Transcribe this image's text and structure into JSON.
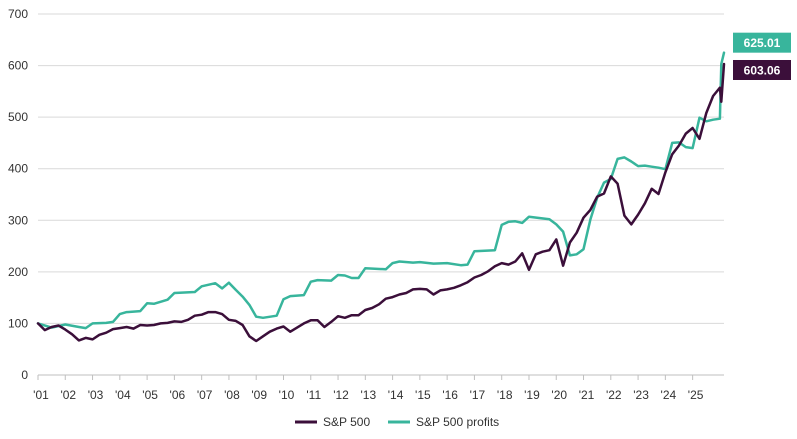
{
  "chart_data": {
    "type": "line",
    "ylim": [
      0,
      700
    ],
    "y_ticks": [
      0,
      100,
      200,
      300,
      400,
      500,
      600,
      700
    ],
    "x_tick_labels": [
      "'01",
      "'02",
      "'03",
      "'04",
      "'05",
      "'06",
      "'07",
      "'08",
      "'09",
      "'10",
      "'11",
      "'12",
      "'13",
      "'14",
      "'15",
      "'16",
      "'17",
      "'18",
      "'19",
      "'20",
      "'21",
      "'22",
      "'23",
      "'24",
      "'25"
    ],
    "xlim": [
      2001.0,
      2026.15
    ],
    "grid": "horizontal",
    "legend_position": "bottom",
    "series": [
      {
        "name": "S&P 500",
        "color": "#3b0f3a",
        "end_label": "603.06",
        "points": [
          [
            2001.0,
            100
          ],
          [
            2001.25,
            87
          ],
          [
            2001.5,
            93
          ],
          [
            2001.75,
            96
          ],
          [
            2002.0,
            88
          ],
          [
            2002.25,
            79
          ],
          [
            2002.5,
            67
          ],
          [
            2002.75,
            72
          ],
          [
            2003.0,
            69
          ],
          [
            2003.25,
            78
          ],
          [
            2003.5,
            82
          ],
          [
            2003.75,
            89
          ],
          [
            2004.0,
            91
          ],
          [
            2004.25,
            93
          ],
          [
            2004.5,
            90
          ],
          [
            2004.75,
            97
          ],
          [
            2005.0,
            96
          ],
          [
            2005.25,
            97
          ],
          [
            2005.5,
            100
          ],
          [
            2005.75,
            101
          ],
          [
            2006.0,
            104
          ],
          [
            2006.25,
            103
          ],
          [
            2006.5,
            107
          ],
          [
            2006.75,
            115
          ],
          [
            2007.0,
            117
          ],
          [
            2007.25,
            122
          ],
          [
            2007.5,
            122
          ],
          [
            2007.75,
            118
          ],
          [
            2008.0,
            107
          ],
          [
            2008.25,
            105
          ],
          [
            2008.5,
            97
          ],
          [
            2008.75,
            75
          ],
          [
            2009.0,
            66
          ],
          [
            2009.25,
            75
          ],
          [
            2009.5,
            84
          ],
          [
            2009.75,
            90
          ],
          [
            2010.0,
            94
          ],
          [
            2010.25,
            84
          ],
          [
            2010.5,
            92
          ],
          [
            2010.75,
            100
          ],
          [
            2011.0,
            106
          ],
          [
            2011.25,
            106
          ],
          [
            2011.5,
            93
          ],
          [
            2011.75,
            103
          ],
          [
            2012.0,
            114
          ],
          [
            2012.25,
            111
          ],
          [
            2012.5,
            116
          ],
          [
            2012.75,
            116
          ],
          [
            2013.0,
            126
          ],
          [
            2013.25,
            130
          ],
          [
            2013.5,
            137
          ],
          [
            2013.75,
            148
          ],
          [
            2014.0,
            151
          ],
          [
            2014.25,
            156
          ],
          [
            2014.5,
            159
          ],
          [
            2014.75,
            166
          ],
          [
            2015.0,
            167
          ],
          [
            2015.25,
            166
          ],
          [
            2015.5,
            156
          ],
          [
            2015.75,
            164
          ],
          [
            2016.0,
            166
          ],
          [
            2016.25,
            169
          ],
          [
            2016.5,
            174
          ],
          [
            2016.75,
            180
          ],
          [
            2017.0,
            189
          ],
          [
            2017.25,
            194
          ],
          [
            2017.5,
            201
          ],
          [
            2017.75,
            211
          ],
          [
            2018.0,
            217
          ],
          [
            2018.25,
            214
          ],
          [
            2018.5,
            220
          ],
          [
            2018.75,
            236
          ],
          [
            2019.0,
            204
          ],
          [
            2019.25,
            234
          ],
          [
            2019.5,
            239
          ],
          [
            2019.75,
            242
          ],
          [
            2020.0,
            263
          ],
          [
            2020.25,
            212
          ],
          [
            2020.5,
            257
          ],
          [
            2020.75,
            276
          ],
          [
            2021.0,
            305
          ],
          [
            2021.25,
            320
          ],
          [
            2021.5,
            346
          ],
          [
            2021.75,
            352
          ],
          [
            2022.0,
            385
          ],
          [
            2022.25,
            371
          ],
          [
            2022.5,
            309
          ],
          [
            2022.75,
            292
          ],
          [
            2023.0,
            311
          ],
          [
            2023.25,
            333
          ],
          [
            2023.5,
            361
          ],
          [
            2023.75,
            351
          ],
          [
            2024.0,
            393
          ],
          [
            2024.25,
            428
          ],
          [
            2024.5,
            445
          ],
          [
            2024.75,
            468
          ],
          [
            2025.0,
            479
          ],
          [
            2025.25,
            458
          ],
          [
            2025.5,
            508
          ],
          [
            2025.75,
            541
          ],
          [
            2026.0,
            557
          ],
          [
            2026.05,
            530
          ],
          [
            2026.15,
            603.06
          ]
        ]
      },
      {
        "name": "S&P 500 profits",
        "color": "#38b59c",
        "end_label": "625.01",
        "points": [
          [
            2001.0,
            100
          ],
          [
            2001.5,
            92
          ],
          [
            2002.0,
            98
          ],
          [
            2002.5,
            93
          ],
          [
            2002.75,
            91
          ],
          [
            2003.0,
            100
          ],
          [
            2003.5,
            101
          ],
          [
            2003.75,
            103
          ],
          [
            2004.0,
            118
          ],
          [
            2004.25,
            122
          ],
          [
            2004.75,
            124
          ],
          [
            2005.0,
            139
          ],
          [
            2005.25,
            138
          ],
          [
            2005.75,
            146
          ],
          [
            2006.0,
            159
          ],
          [
            2006.75,
            161
          ],
          [
            2007.0,
            172
          ],
          [
            2007.5,
            178
          ],
          [
            2007.75,
            168
          ],
          [
            2008.0,
            179
          ],
          [
            2008.25,
            165
          ],
          [
            2008.5,
            152
          ],
          [
            2008.75,
            136
          ],
          [
            2009.0,
            113
          ],
          [
            2009.25,
            111
          ],
          [
            2009.75,
            115
          ],
          [
            2010.0,
            147
          ],
          [
            2010.25,
            153
          ],
          [
            2010.75,
            155
          ],
          [
            2011.0,
            181
          ],
          [
            2011.25,
            184
          ],
          [
            2011.75,
            183
          ],
          [
            2012.0,
            194
          ],
          [
            2012.25,
            193
          ],
          [
            2012.5,
            188
          ],
          [
            2012.75,
            188
          ],
          [
            2013.0,
            207
          ],
          [
            2013.75,
            205
          ],
          [
            2014.0,
            217
          ],
          [
            2014.25,
            220
          ],
          [
            2014.75,
            218
          ],
          [
            2015.0,
            219
          ],
          [
            2015.5,
            216
          ],
          [
            2016.0,
            217
          ],
          [
            2016.5,
            213
          ],
          [
            2016.75,
            214
          ],
          [
            2017.0,
            240
          ],
          [
            2017.75,
            242
          ],
          [
            2018.0,
            291
          ],
          [
            2018.25,
            297
          ],
          [
            2018.5,
            298
          ],
          [
            2018.75,
            295
          ],
          [
            2019.0,
            307
          ],
          [
            2019.75,
            302
          ],
          [
            2020.0,
            292
          ],
          [
            2020.25,
            278
          ],
          [
            2020.5,
            232
          ],
          [
            2020.75,
            234
          ],
          [
            2021.0,
            244
          ],
          [
            2021.25,
            301
          ],
          [
            2021.5,
            344
          ],
          [
            2021.75,
            373
          ],
          [
            2022.0,
            380
          ],
          [
            2022.25,
            419
          ],
          [
            2022.5,
            422
          ],
          [
            2022.75,
            414
          ],
          [
            2023.0,
            405
          ],
          [
            2023.25,
            406
          ],
          [
            2023.5,
            404
          ],
          [
            2023.75,
            402
          ],
          [
            2024.0,
            399
          ],
          [
            2024.25,
            450
          ],
          [
            2024.5,
            451
          ],
          [
            2024.75,
            442
          ],
          [
            2025.0,
            440
          ],
          [
            2025.25,
            499
          ],
          [
            2025.5,
            492
          ],
          [
            2025.75,
            495
          ],
          [
            2026.0,
            497
          ],
          [
            2026.05,
            603
          ],
          [
            2026.15,
            625.01
          ]
        ]
      }
    ]
  }
}
